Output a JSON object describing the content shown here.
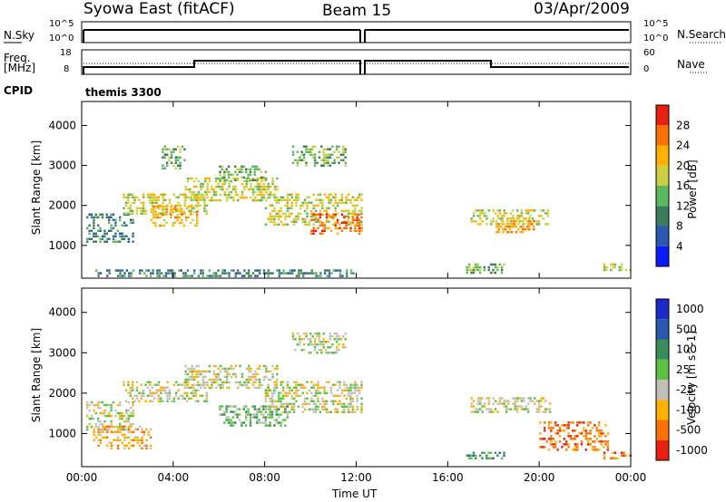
{
  "header": {
    "station": "Syowa East (fitACF)",
    "beam": "Beam 15",
    "date": "03/Apr/2009"
  },
  "top_panels": {
    "nsky_label": "N.Sky",
    "nsearch_label": "N.Search",
    "nsky_ticks": [
      "10^5",
      "10^0"
    ],
    "nsearch_ticks": [
      "10^5",
      "10^0"
    ],
    "freq_label_1": "Freq.",
    "freq_label_2": "[MHz]",
    "freq_ticks": [
      "18",
      "8"
    ],
    "nave_label": "Nave",
    "nave_ticks": [
      "60",
      "0"
    ],
    "cpid_label": "CPID",
    "cpid_value": "themis 3300"
  },
  "chart_data": [
    {
      "type": "heatmap",
      "ylabel": "Slant Range [km]",
      "x_ticks": [
        "00:00",
        "04:00",
        "08:00",
        "12:00",
        "16:00",
        "20:00",
        "00:00"
      ],
      "y_ticks": [
        1000,
        2000,
        3000,
        4000
      ],
      "xlim_hours": [
        0,
        24
      ],
      "ylim": [
        180,
        4600
      ],
      "colorbar": {
        "label": "Power [dB]",
        "ticks": [
          4,
          8,
          12,
          16,
          20,
          24,
          28
        ],
        "colors": [
          "#0a1aff",
          "#2a58b0",
          "#3a7c5c",
          "#5cb85c",
          "#ccd040",
          "#ffb000",
          "#ff7000",
          "#e82010"
        ]
      },
      "regions": [
        {
          "t0": 0.2,
          "t1": 2.2,
          "r0": 1100,
          "r1": 1800,
          "level": 2
        },
        {
          "t0": 1.8,
          "t1": 5.5,
          "r0": 1800,
          "r1": 2300,
          "level": 4
        },
        {
          "t0": 3.0,
          "t1": 5.0,
          "r0": 1500,
          "r1": 2000,
          "level": 5
        },
        {
          "t0": 4.5,
          "t1": 8.5,
          "r0": 2100,
          "r1": 2700,
          "level": 4
        },
        {
          "t0": 6.0,
          "t1": 8.0,
          "r0": 2600,
          "r1": 3000,
          "level": 3
        },
        {
          "t0": 8.0,
          "t1": 12.2,
          "r0": 1500,
          "r1": 2300,
          "level": 4
        },
        {
          "t0": 10.0,
          "t1": 12.2,
          "r0": 1300,
          "r1": 1800,
          "level": 6
        },
        {
          "t0": 9.2,
          "t1": 11.5,
          "r0": 3000,
          "r1": 3500,
          "level": 3
        },
        {
          "t0": 3.5,
          "t1": 4.5,
          "r0": 2900,
          "r1": 3500,
          "level": 3
        },
        {
          "t0": 17.0,
          "t1": 20.5,
          "r0": 1500,
          "r1": 1900,
          "level": 4
        },
        {
          "t0": 18.0,
          "t1": 19.8,
          "r0": 1300,
          "r1": 1700,
          "level": 5
        },
        {
          "t0": 16.8,
          "t1": 18.5,
          "r0": 300,
          "r1": 550,
          "level": 3
        },
        {
          "t0": 22.8,
          "t1": 24.0,
          "r0": 350,
          "r1": 550,
          "level": 4
        },
        {
          "t0": 0.5,
          "t1": 12.0,
          "r0": 200,
          "r1": 400,
          "level": 2
        }
      ]
    },
    {
      "type": "heatmap",
      "ylabel": "Slant Range [km]",
      "xlabel": "Time UT",
      "x_ticks": [
        "00:00",
        "04:00",
        "08:00",
        "12:00",
        "16:00",
        "20:00",
        "00:00"
      ],
      "y_ticks": [
        1000,
        2000,
        3000,
        4000
      ],
      "xlim_hours": [
        0,
        24
      ],
      "ylim": [
        180,
        4600
      ],
      "colorbar": {
        "label": "Velocity [m s^-1]",
        "ticks": [
          "1000",
          "500",
          "100",
          "25",
          "-25",
          "-100",
          "-500",
          "-1000"
        ],
        "colors": [
          "#1a2ac8",
          "#2a58b0",
          "#3a8c5a",
          "#5cc040",
          "#c0c0b8",
          "#ffb000",
          "#ff7000",
          "#e82010"
        ]
      },
      "regions": [
        {
          "t0": 0.2,
          "t1": 2.2,
          "r0": 1100,
          "r1": 1800,
          "level": 4
        },
        {
          "t0": 1.8,
          "t1": 5.5,
          "r0": 1800,
          "r1": 2300,
          "level": 4
        },
        {
          "t0": 4.5,
          "t1": 8.5,
          "r0": 2100,
          "r1": 2700,
          "level": 4
        },
        {
          "t0": 8.0,
          "t1": 12.2,
          "r0": 1500,
          "r1": 2300,
          "level": 4
        },
        {
          "t0": 9.2,
          "t1": 11.5,
          "r0": 3000,
          "r1": 3500,
          "level": 4
        },
        {
          "t0": 17.0,
          "t1": 20.5,
          "r0": 1500,
          "r1": 1900,
          "level": 4
        },
        {
          "t0": 16.8,
          "t1": 18.5,
          "r0": 350,
          "r1": 550,
          "level": 2
        },
        {
          "t0": 22.8,
          "t1": 24.0,
          "r0": 400,
          "r1": 550,
          "level": 6
        },
        {
          "t0": 20.0,
          "t1": 23.0,
          "r0": 600,
          "r1": 1300,
          "level": 6
        },
        {
          "t0": 0.5,
          "t1": 3.0,
          "r0": 600,
          "r1": 1200,
          "level": 5
        },
        {
          "t0": 6.0,
          "t1": 9.0,
          "r0": 1200,
          "r1": 1700,
          "level": 3
        }
      ]
    }
  ]
}
